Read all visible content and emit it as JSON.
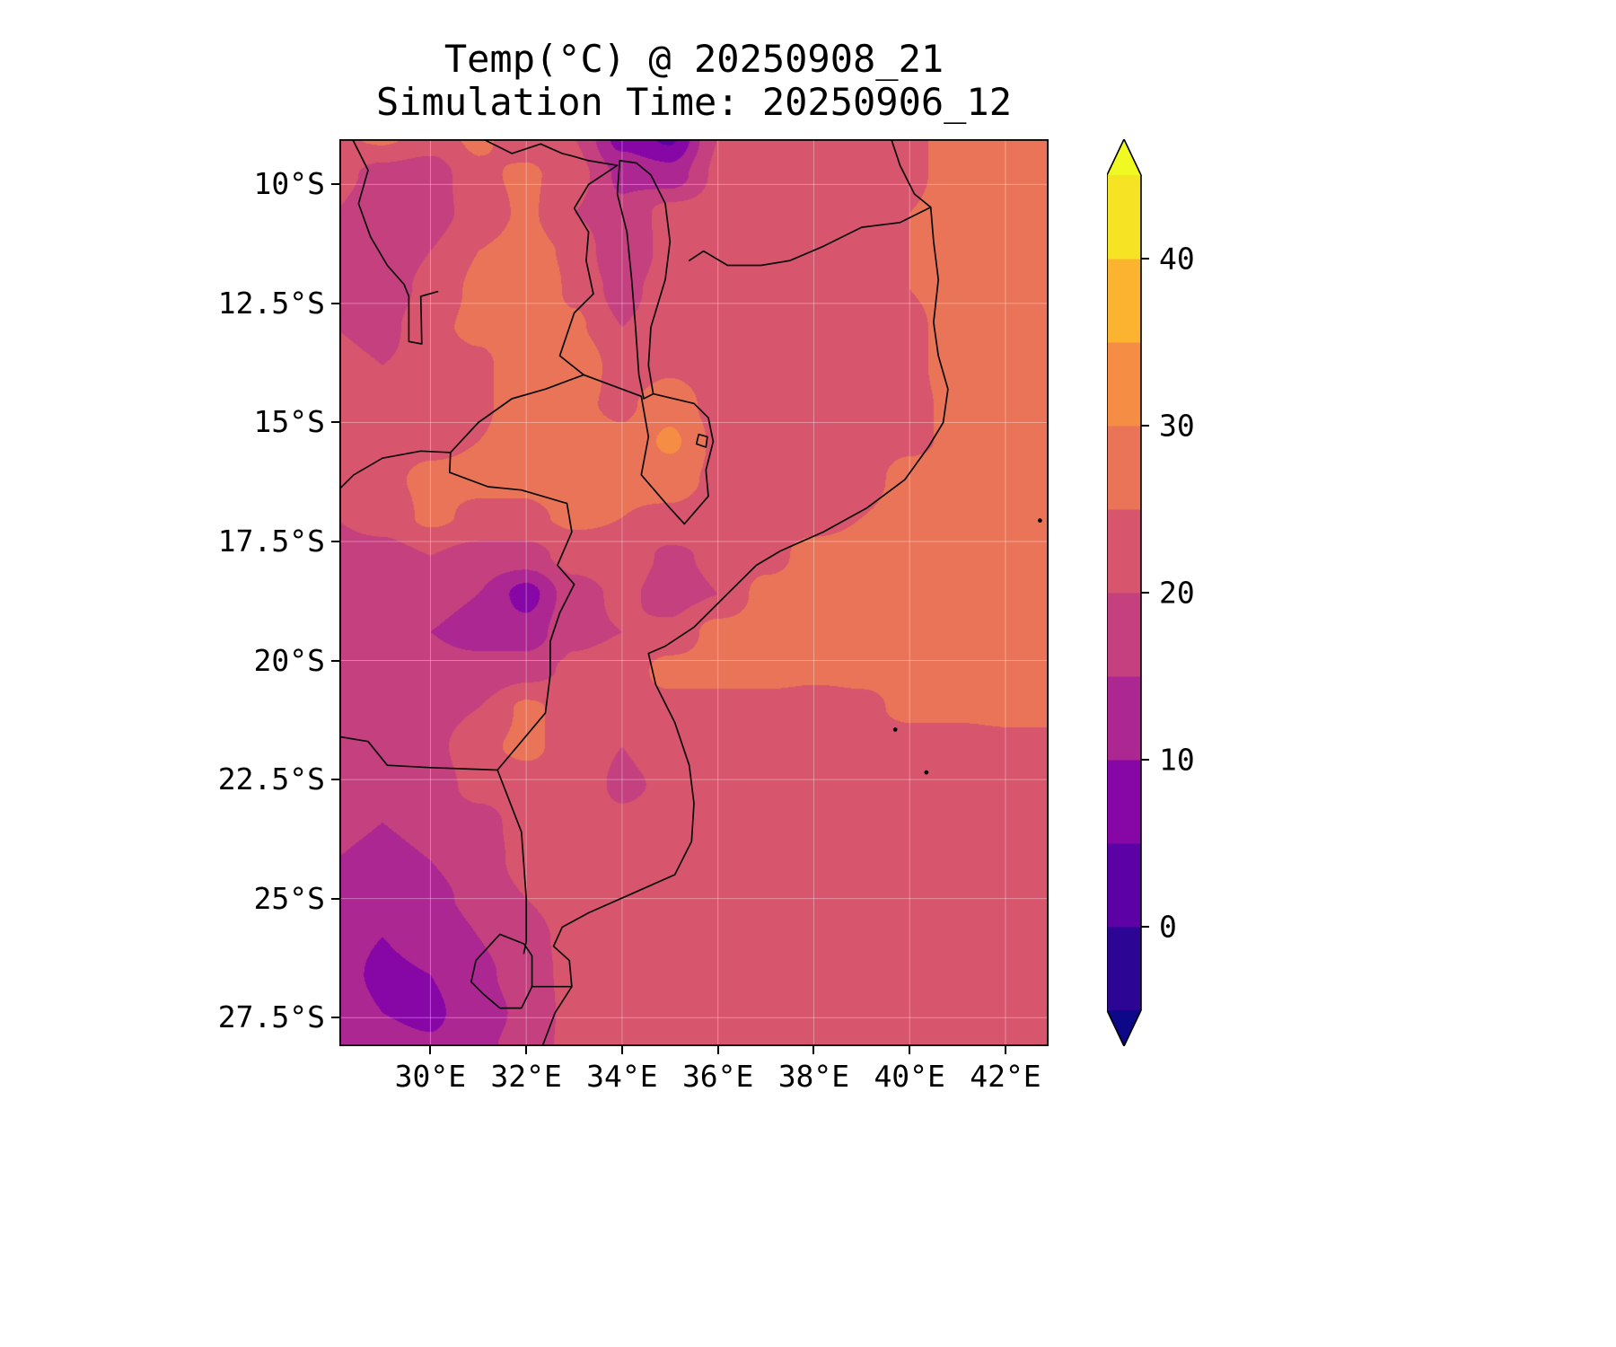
{
  "title": {
    "line1": "Temp(°C) @ 20250908_21",
    "line2": "Simulation Time: 20250906_12"
  },
  "axes": {
    "x_ticks": [
      {
        "label": "30°E",
        "value": 30
      },
      {
        "label": "32°E",
        "value": 32
      },
      {
        "label": "34°E",
        "value": 34
      },
      {
        "label": "36°E",
        "value": 36
      },
      {
        "label": "38°E",
        "value": 38
      },
      {
        "label": "40°E",
        "value": 40
      },
      {
        "label": "42°E",
        "value": 42
      }
    ],
    "y_ticks": [
      {
        "label": "10°S",
        "value": -10
      },
      {
        "label": "12.5°S",
        "value": -12.5
      },
      {
        "label": "15°S",
        "value": -15
      },
      {
        "label": "17.5°S",
        "value": -17.5
      },
      {
        "label": "20°S",
        "value": -20
      },
      {
        "label": "22.5°S",
        "value": -22.5
      },
      {
        "label": "25°S",
        "value": -25
      },
      {
        "label": "27.5°S",
        "value": -27.5
      }
    ]
  },
  "colorbar": {
    "levels": [
      -5,
      0,
      5,
      10,
      15,
      20,
      25,
      30,
      35,
      40,
      45
    ],
    "band_colors": [
      "#2d0594",
      "#5c01a6",
      "#8707a6",
      "#ad2793",
      "#c5407e",
      "#d7556d",
      "#ea7457",
      "#f68d45",
      "#fcb32f",
      "#f6e323"
    ],
    "under_color": "#0d0887",
    "over_color": "#f0f921",
    "tick_values": [
      0,
      10,
      20,
      30,
      40
    ],
    "tick_labels": [
      "0",
      "10",
      "20",
      "30",
      "40"
    ]
  },
  "chart_data": {
    "type": "heatmap",
    "title": "Temp(°C) @ 20250908_21",
    "subtitle": "Simulation Time: 20250906_12",
    "variable": "Temp",
    "units": "°C",
    "valid_time": "20250908_21",
    "simulation_time": "20250906_12",
    "legend_position": "right-colorbar",
    "grid_on": true,
    "plot_lon_range": [
      28.1,
      42.9
    ],
    "plot_lat_range": [
      -9.05,
      -28.1
    ],
    "contour_levels_c": [
      -5,
      0,
      5,
      10,
      15,
      20,
      25,
      30,
      35,
      40,
      45
    ],
    "grid": {
      "nx": 16,
      "ny": 25,
      "lon_start": 28,
      "lon_step": 1.0,
      "lat_start": -9,
      "lat_step": -0.8,
      "temps_c": [
        [
          24,
          26,
          23,
          26,
          22,
          20,
          8,
          4,
          20,
          23,
          22,
          23,
          24,
          27,
          27,
          27
        ],
        [
          22,
          18,
          17,
          24,
          26,
          22,
          14,
          12,
          21,
          23,
          23,
          23,
          24,
          27,
          27,
          27
        ],
        [
          20,
          16,
          18,
          22,
          26,
          20,
          16,
          22,
          22,
          22,
          23,
          23,
          25,
          27,
          27,
          27
        ],
        [
          17,
          15,
          20,
          25,
          27,
          24,
          15,
          22,
          20,
          22,
          23,
          23,
          25,
          27,
          27,
          27
        ],
        [
          18,
          16,
          22,
          26,
          30,
          24,
          18,
          23,
          20,
          21,
          23,
          24,
          25,
          27,
          27,
          27
        ],
        [
          20,
          18,
          24,
          26,
          28,
          26,
          20,
          23,
          22,
          22,
          23,
          23,
          24,
          27,
          27,
          27
        ],
        [
          22,
          20,
          22,
          24,
          28,
          30,
          22,
          24,
          22,
          23,
          23,
          23,
          24,
          27,
          27,
          27
        ],
        [
          23,
          22,
          22,
          24,
          28,
          26,
          24,
          28,
          23,
          23,
          23,
          23,
          24,
          26,
          27,
          27
        ],
        [
          22,
          23,
          24,
          25,
          27,
          27,
          26,
          31,
          24,
          23,
          23,
          23,
          24,
          26,
          27,
          27
        ],
        [
          22,
          24,
          26,
          26,
          26,
          28,
          26,
          27,
          24,
          23,
          23,
          23,
          27,
          27,
          27,
          27
        ],
        [
          20,
          22,
          26,
          24,
          24,
          26,
          25,
          24,
          23,
          23,
          23,
          25,
          27,
          27,
          27,
          27
        ],
        [
          18,
          18,
          20,
          18,
          18,
          22,
          23,
          19,
          21,
          23,
          27,
          27,
          27,
          27,
          27,
          27
        ],
        [
          16,
          17,
          16,
          15,
          8,
          18,
          21,
          18,
          20,
          27,
          27,
          27,
          27,
          27,
          27,
          27
        ],
        [
          17,
          16,
          15,
          14,
          12,
          19,
          20,
          21,
          27,
          27,
          27,
          27,
          27,
          27,
          27,
          27
        ],
        [
          16,
          15,
          16,
          16,
          18,
          21,
          22,
          27,
          27,
          27,
          26,
          26,
          26,
          26,
          26,
          26
        ],
        [
          18,
          16,
          17,
          20,
          26,
          23,
          23,
          23,
          23,
          23,
          23,
          24,
          26,
          26,
          26,
          26
        ],
        [
          20,
          18,
          18,
          24,
          26,
          23,
          20,
          23,
          23,
          23,
          23,
          23,
          23,
          23,
          24,
          24
        ],
        [
          18,
          16,
          17,
          22,
          23,
          23,
          19,
          21,
          23,
          23,
          23,
          23,
          23,
          23,
          23,
          23
        ],
        [
          16,
          15,
          16,
          18,
          22,
          23,
          21,
          22,
          23,
          23,
          23,
          23,
          23,
          23,
          23,
          23
        ],
        [
          15,
          14,
          15,
          17,
          22,
          23,
          23,
          23,
          23,
          23,
          23,
          23,
          23,
          23,
          23,
          23
        ],
        [
          14,
          12,
          14,
          16,
          20,
          23,
          23,
          23,
          23,
          23,
          23,
          23,
          23,
          23,
          23,
          23
        ],
        [
          12,
          10,
          12,
          15,
          18,
          22,
          23,
          23,
          23,
          23,
          23,
          23,
          23,
          23,
          23,
          23
        ],
        [
          12,
          9,
          10,
          14,
          17,
          22,
          23,
          23,
          23,
          23,
          23,
          23,
          23,
          23,
          23,
          23
        ],
        [
          13,
          10,
          9,
          13,
          16,
          22,
          23,
          23,
          23,
          23,
          23,
          23,
          23,
          23,
          23,
          23
        ],
        [
          14,
          12,
          11,
          14,
          17,
          22,
          23,
          23,
          23,
          23,
          23,
          23,
          23,
          23,
          23,
          23
        ]
      ]
    }
  },
  "map": {
    "borders": [
      {
        "name": "coastline",
        "closed": false,
        "points": [
          [
            39.6,
            -9.0
          ],
          [
            39.8,
            -9.6
          ],
          [
            40.1,
            -10.2
          ],
          [
            40.44,
            -10.48
          ],
          [
            40.5,
            -11.2
          ],
          [
            40.6,
            -12.0
          ],
          [
            40.5,
            -12.9
          ],
          [
            40.6,
            -13.6
          ],
          [
            40.8,
            -14.3
          ],
          [
            40.7,
            -15.0
          ],
          [
            40.4,
            -15.5
          ],
          [
            39.9,
            -16.2
          ],
          [
            39.1,
            -16.8
          ],
          [
            38.2,
            -17.3
          ],
          [
            37.3,
            -17.7
          ],
          [
            36.8,
            -18.0
          ],
          [
            36.1,
            -18.7
          ],
          [
            35.5,
            -19.3
          ],
          [
            34.9,
            -19.7
          ],
          [
            34.55,
            -19.85
          ],
          [
            34.7,
            -20.5
          ],
          [
            35.1,
            -21.3
          ],
          [
            35.4,
            -22.2
          ],
          [
            35.5,
            -23.0
          ],
          [
            35.45,
            -23.8
          ],
          [
            35.1,
            -24.5
          ],
          [
            34.2,
            -24.9
          ],
          [
            33.3,
            -25.3
          ],
          [
            32.75,
            -25.6
          ],
          [
            32.57,
            -26.0
          ],
          [
            32.9,
            -26.3
          ],
          [
            32.95,
            -26.85
          ],
          [
            32.6,
            -27.4
          ],
          [
            32.3,
            -28.2
          ]
        ]
      },
      {
        "name": "rovuma-border",
        "closed": false,
        "points": [
          [
            40.44,
            -10.48
          ],
          [
            39.8,
            -10.8
          ],
          [
            39.0,
            -10.9
          ],
          [
            38.2,
            -11.3
          ],
          [
            37.5,
            -11.6
          ],
          [
            36.9,
            -11.7
          ],
          [
            36.2,
            -11.7
          ],
          [
            35.7,
            -11.4
          ],
          [
            35.4,
            -11.6
          ]
        ]
      },
      {
        "name": "tanzania-zambia-border",
        "closed": false,
        "points": [
          [
            31.0,
            -9.0
          ],
          [
            31.7,
            -9.35
          ],
          [
            32.3,
            -9.15
          ],
          [
            32.75,
            -9.35
          ],
          [
            32.95,
            -9.4
          ],
          [
            33.3,
            -9.5
          ],
          [
            33.9,
            -9.6
          ]
        ]
      },
      {
        "name": "lake-malawi-shoreline",
        "closed": true,
        "points": [
          [
            33.95,
            -9.5
          ],
          [
            34.3,
            -9.55
          ],
          [
            34.6,
            -9.8
          ],
          [
            34.9,
            -10.4
          ],
          [
            35.0,
            -11.2
          ],
          [
            34.9,
            -12.0
          ],
          [
            34.6,
            -13.0
          ],
          [
            34.55,
            -13.8
          ],
          [
            34.65,
            -14.4
          ],
          [
            34.45,
            -14.5
          ],
          [
            34.35,
            -14.0
          ],
          [
            34.28,
            -13.0
          ],
          [
            34.2,
            -12.0
          ],
          [
            34.1,
            -11.0
          ],
          [
            33.9,
            -10.2
          ]
        ]
      },
      {
        "name": "malawi-zambia-border",
        "closed": false,
        "points": [
          [
            33.9,
            -9.6
          ],
          [
            33.3,
            -10.0
          ],
          [
            33.0,
            -10.5
          ],
          [
            33.3,
            -11.0
          ],
          [
            33.25,
            -11.6
          ],
          [
            33.4,
            -12.3
          ],
          [
            33.0,
            -12.7
          ],
          [
            32.7,
            -13.6
          ],
          [
            33.2,
            -14.0
          ]
        ]
      },
      {
        "name": "malawi-mozambique-border",
        "closed": false,
        "points": [
          [
            33.2,
            -14.0
          ],
          [
            34.4,
            -14.45
          ],
          [
            34.55,
            -15.3
          ],
          [
            34.4,
            -16.1
          ],
          [
            35.0,
            -16.8
          ],
          [
            35.3,
            -17.13
          ],
          [
            35.8,
            -16.55
          ],
          [
            35.75,
            -16.0
          ],
          [
            35.9,
            -15.4
          ],
          [
            35.8,
            -14.9
          ],
          [
            35.5,
            -14.6
          ],
          [
            34.65,
            -14.4
          ]
        ]
      },
      {
        "name": "zambia-mozambique-border",
        "closed": false,
        "points": [
          [
            33.2,
            -14.0
          ],
          [
            32.4,
            -14.3
          ],
          [
            31.7,
            -14.5
          ],
          [
            31.0,
            -15.0
          ],
          [
            30.42,
            -15.63
          ]
        ]
      },
      {
        "name": "zambia-zimbabwe-border",
        "closed": false,
        "points": [
          [
            30.42,
            -15.63
          ],
          [
            29.8,
            -15.6
          ],
          [
            29.0,
            -15.75
          ],
          [
            28.4,
            -16.1
          ],
          [
            28.1,
            -16.4
          ]
        ]
      },
      {
        "name": "zimbabwe-mozambique-border",
        "closed": false,
        "points": [
          [
            30.42,
            -15.63
          ],
          [
            30.4,
            -16.05
          ],
          [
            31.2,
            -16.35
          ],
          [
            31.9,
            -16.42
          ],
          [
            32.85,
            -16.7
          ],
          [
            32.95,
            -17.3
          ],
          [
            32.65,
            -18.0
          ],
          [
            33.0,
            -18.4
          ],
          [
            32.7,
            -19.0
          ],
          [
            32.5,
            -19.6
          ],
          [
            32.5,
            -20.3
          ],
          [
            32.4,
            -21.1
          ],
          [
            31.4,
            -22.3
          ]
        ]
      },
      {
        "name": "limpopo-border",
        "closed": false,
        "points": [
          [
            28.1,
            -21.6
          ],
          [
            28.7,
            -21.7
          ],
          [
            29.1,
            -22.2
          ],
          [
            30.0,
            -22.25
          ],
          [
            31.4,
            -22.3
          ]
        ]
      },
      {
        "name": "mozambique-south-africa-border",
        "closed": false,
        "points": [
          [
            31.4,
            -22.3
          ],
          [
            31.9,
            -23.6
          ],
          [
            31.95,
            -24.3
          ],
          [
            32.0,
            -25.0
          ],
          [
            32.0,
            -25.9
          ],
          [
            31.95,
            -26.15
          ]
        ]
      },
      {
        "name": "eswatini-border",
        "closed": true,
        "points": [
          [
            31.95,
            -25.95
          ],
          [
            32.12,
            -26.2
          ],
          [
            32.12,
            -26.85
          ],
          [
            31.9,
            -27.3
          ],
          [
            31.45,
            -27.3
          ],
          [
            31.1,
            -27.0
          ],
          [
            30.85,
            -26.75
          ],
          [
            30.95,
            -26.3
          ],
          [
            31.45,
            -25.75
          ]
        ]
      },
      {
        "name": "south-border-to-coast",
        "closed": false,
        "points": [
          [
            32.12,
            -26.85
          ],
          [
            32.95,
            -26.85
          ]
        ]
      },
      {
        "name": "drc-zambia-pedicle-border",
        "closed": false,
        "points": [
          [
            28.35,
            -9.0
          ],
          [
            28.7,
            -9.7
          ],
          [
            28.5,
            -10.4
          ],
          [
            28.75,
            -11.1
          ],
          [
            29.1,
            -11.7
          ],
          [
            29.45,
            -12.1
          ],
          [
            29.55,
            -12.35
          ],
          [
            29.55,
            -13.3
          ],
          [
            29.82,
            -13.35
          ],
          [
            29.8,
            -12.35
          ],
          [
            30.15,
            -12.25
          ]
        ]
      },
      {
        "name": "lake-chilwa-shoreline",
        "closed": true,
        "points": [
          [
            35.6,
            -15.25
          ],
          [
            35.78,
            -15.3
          ],
          [
            35.75,
            -15.52
          ],
          [
            35.55,
            -15.45
          ]
        ]
      }
    ],
    "islands": [
      {
        "name": "small-island-dot-1",
        "lon": 42.72,
        "lat": -17.06
      },
      {
        "name": "small-island-dot-2",
        "lon": 40.35,
        "lat": -22.35
      },
      {
        "name": "small-island-dot-3",
        "lon": 39.7,
        "lat": -21.45
      }
    ]
  }
}
